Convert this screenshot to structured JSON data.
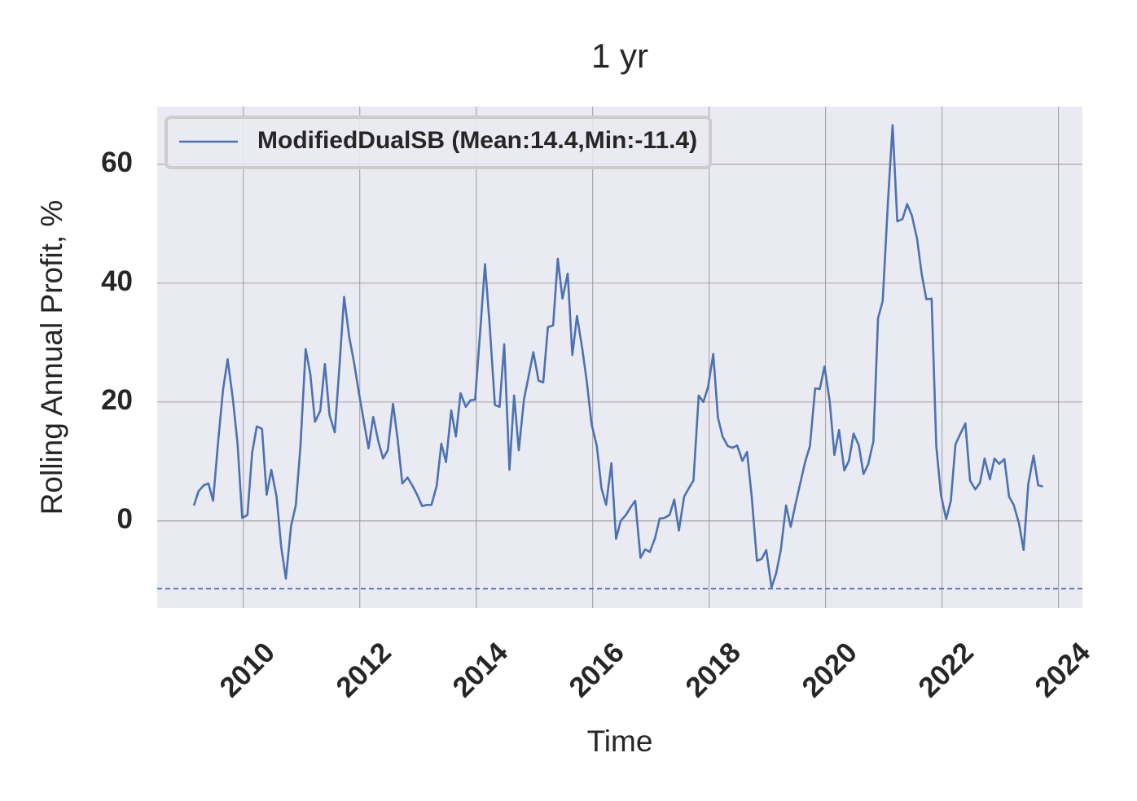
{
  "chart_data": {
    "type": "line",
    "title": "1 yr",
    "x_label": "Time",
    "y_label": "Rolling Annual Profit, %",
    "xlim": [
      2008.52,
      2024.41
    ],
    "ylim": [
      -14.66,
      69.7
    ],
    "xticks": [
      2010,
      2012,
      2014,
      2016,
      2018,
      2020,
      2022,
      2024
    ],
    "yticks": [
      0,
      20,
      40,
      60
    ],
    "grid": true,
    "legend": "upper left",
    "min_line": -11.4,
    "x": [
      2009.15,
      2009.23,
      2009.32,
      2009.4,
      2009.48,
      2009.57,
      2009.65,
      2009.73,
      2009.82,
      2009.9,
      2009.98,
      2010.07,
      2010.15,
      2010.23,
      2010.32,
      2010.4,
      2010.48,
      2010.57,
      2010.65,
      2010.73,
      2010.82,
      2010.9,
      2010.98,
      2011.07,
      2011.15,
      2011.23,
      2011.32,
      2011.4,
      2011.48,
      2011.57,
      2011.65,
      2011.73,
      2011.82,
      2011.9,
      2011.98,
      2012.07,
      2012.15,
      2012.23,
      2012.32,
      2012.4,
      2012.48,
      2012.57,
      2012.65,
      2012.73,
      2012.82,
      2012.9,
      2012.98,
      2013.07,
      2013.15,
      2013.23,
      2013.32,
      2013.4,
      2013.48,
      2013.57,
      2013.65,
      2013.73,
      2013.82,
      2013.9,
      2013.98,
      2014.07,
      2014.15,
      2014.23,
      2014.32,
      2014.4,
      2014.48,
      2014.57,
      2014.65,
      2014.73,
      2014.82,
      2014.9,
      2014.98,
      2015.07,
      2015.15,
      2015.23,
      2015.32,
      2015.4,
      2015.48,
      2015.57,
      2015.65,
      2015.73,
      2015.82,
      2015.9,
      2015.98,
      2016.07,
      2016.15,
      2016.23,
      2016.32,
      2016.4,
      2016.48,
      2016.57,
      2016.65,
      2016.73,
      2016.82,
      2016.9,
      2016.98,
      2017.07,
      2017.15,
      2017.23,
      2017.32,
      2017.4,
      2017.48,
      2017.57,
      2017.65,
      2017.73,
      2017.82,
      2017.9,
      2017.98,
      2018.07,
      2018.15,
      2018.23,
      2018.32,
      2018.4,
      2018.48,
      2018.57,
      2018.65,
      2018.73,
      2018.82,
      2018.9,
      2018.98,
      2019.07,
      2019.15,
      2019.23,
      2019.32,
      2019.4,
      2019.48,
      2019.57,
      2019.65,
      2019.73,
      2019.82,
      2019.9,
      2019.98,
      2020.07,
      2020.15,
      2020.23,
      2020.32,
      2020.4,
      2020.48,
      2020.57,
      2020.65,
      2020.73,
      2020.82,
      2020.9,
      2020.98,
      2021.07,
      2021.15,
      2021.23,
      2021.32,
      2021.4,
      2021.48,
      2021.57,
      2021.65,
      2021.73,
      2021.82,
      2021.9,
      2021.98,
      2022.07,
      2022.15,
      2022.23,
      2022.32,
      2022.4,
      2022.48,
      2022.57,
      2022.65,
      2022.73,
      2022.82,
      2022.9,
      2022.98,
      2023.07,
      2023.15,
      2023.23,
      2023.32,
      2023.4,
      2023.48,
      2023.57,
      2023.65,
      2023.73
    ],
    "series": [
      {
        "name": "ModifiedDualSB (Mean:14.4,Min:-11.4)",
        "color": "#4c72b0",
        "values": [
          2.6,
          5,
          6,
          6.3,
          3.4,
          13.7,
          22,
          27.2,
          20.5,
          13,
          0.5,
          1,
          11.4,
          15.9,
          15.5,
          4.4,
          8.6,
          4.1,
          -4.4,
          -9.7,
          -0.8,
          2.6,
          12.5,
          28.9,
          24.7,
          16.7,
          18.5,
          26.4,
          17.8,
          14.9,
          26,
          37.7,
          30.8,
          26.7,
          21.8,
          16.7,
          12.2,
          17.5,
          13.3,
          10.5,
          11.9,
          19.7,
          13.7,
          6.3,
          7.3,
          6,
          4.5,
          2.5,
          2.7,
          2.7,
          5.9,
          13,
          9.9,
          18.6,
          14.2,
          21.5,
          19.2,
          20.3,
          20.4,
          32.3,
          43.2,
          32.9,
          19.5,
          19.2,
          29.7,
          8.6,
          21.1,
          11.9,
          20.5,
          24.4,
          28.4,
          23.6,
          23.3,
          32.6,
          32.9,
          44.1,
          37.4,
          41.6,
          27.9,
          34.5,
          29,
          23.3,
          16.3,
          12.6,
          5.5,
          2.7,
          9.7,
          -3,
          0,
          1,
          2.3,
          3.4,
          -6.2,
          -4.8,
          -5.2,
          -2.9,
          0.4,
          0.5,
          1,
          3.6,
          -1.6,
          4.1,
          5.5,
          6.8,
          21.1,
          20,
          22.5,
          28.1,
          17.4,
          14.2,
          12.6,
          12.3,
          12.7,
          10.1,
          11.6,
          4.1,
          -6.7,
          -6.4,
          -4.9,
          -11.2,
          -8.8,
          -4.9,
          2.6,
          -1,
          2.7,
          6.6,
          10,
          12.6,
          22.3,
          22.2,
          26,
          20.1,
          11.1,
          15.3,
          8.5,
          10.1,
          14.7,
          12.7,
          7.9,
          9.5,
          13.4,
          34.1,
          37,
          53.7,
          66.6,
          50.4,
          50.8,
          53.3,
          51.4,
          47.5,
          41.5,
          37.3,
          37.4,
          12.6,
          4.4,
          0.3,
          3.4,
          12.9,
          14.8,
          16.4,
          6.8,
          5.3,
          6.4,
          10.5,
          7,
          10.5,
          9.6,
          10.4,
          4.1,
          2.7,
          -0.4,
          -4.9,
          6.2,
          11,
          6,
          5.8
        ]
      }
    ]
  }
}
